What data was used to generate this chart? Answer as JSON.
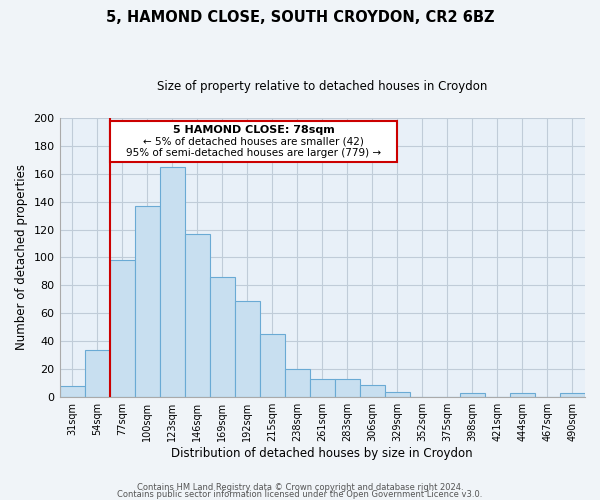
{
  "title": "5, HAMOND CLOSE, SOUTH CROYDON, CR2 6BZ",
  "subtitle": "Size of property relative to detached houses in Croydon",
  "xlabel": "Distribution of detached houses by size in Croydon",
  "ylabel": "Number of detached properties",
  "bar_labels": [
    "31sqm",
    "54sqm",
    "77sqm",
    "100sqm",
    "123sqm",
    "146sqm",
    "169sqm",
    "192sqm",
    "215sqm",
    "238sqm",
    "261sqm",
    "283sqm",
    "306sqm",
    "329sqm",
    "352sqm",
    "375sqm",
    "398sqm",
    "421sqm",
    "444sqm",
    "467sqm",
    "490sqm"
  ],
  "bar_heights": [
    8,
    34,
    98,
    137,
    165,
    117,
    86,
    69,
    45,
    20,
    13,
    13,
    9,
    4,
    0,
    0,
    3,
    0,
    3,
    0,
    3
  ],
  "bar_color": "#c8dff0",
  "bar_edge_color": "#6aaad4",
  "vline_color": "#cc0000",
  "annotation_title": "5 HAMOND CLOSE: 78sqm",
  "annotation_line1": "← 5% of detached houses are smaller (42)",
  "annotation_line2": "95% of semi-detached houses are larger (779) →",
  "annotation_box_color": "#cc0000",
  "ylim": [
    0,
    200
  ],
  "yticks": [
    0,
    20,
    40,
    60,
    80,
    100,
    120,
    140,
    160,
    180,
    200
  ],
  "footer1": "Contains HM Land Registry data © Crown copyright and database right 2024.",
  "footer2": "Contains public sector information licensed under the Open Government Licence v3.0.",
  "bg_color": "#f0f4f8",
  "plot_bg_color": "#e8f0f8",
  "grid_color": "#c0ccd8"
}
